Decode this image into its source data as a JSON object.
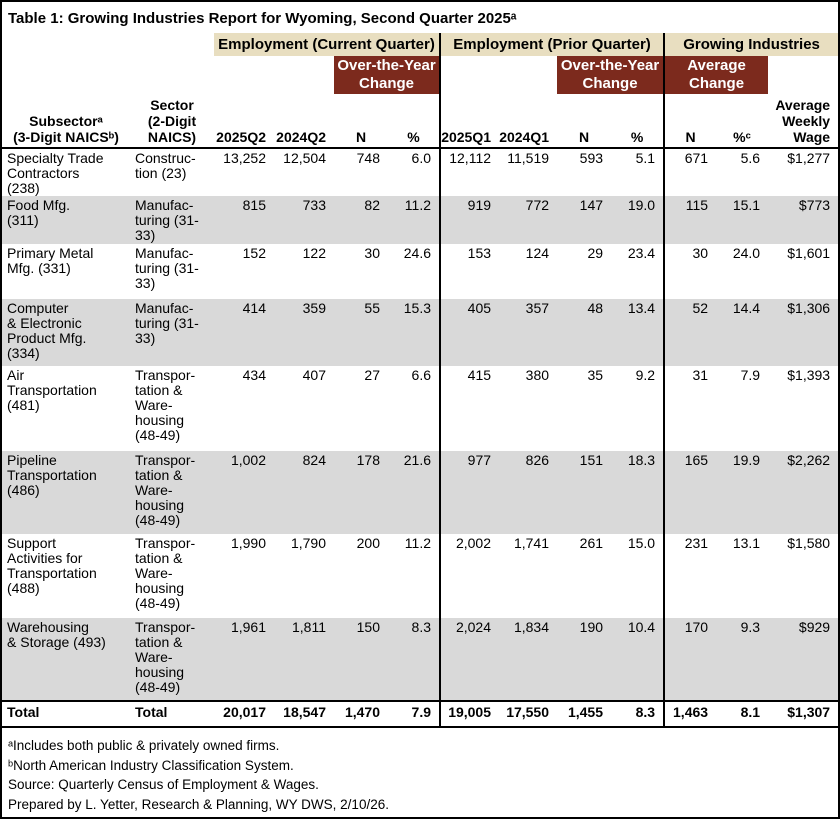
{
  "title": "Table 1: Growing Industries Report for Wyoming, Second Quarter 2025ᵃ",
  "colors": {
    "group_header_bg": "#E8DEC0",
    "change_header_bg": "#7C2A1D",
    "change_header_text": "#FFFFFF",
    "stripe_row_bg": "#D9D9D9",
    "border": "#000000"
  },
  "table": {
    "group_headers": [
      "Employment (Current Quarter)",
      "Employment (Prior Quarter)",
      "Growing Industries"
    ],
    "change_headers": [
      "Over-the-Year\nChange",
      "Over-the-Year\nChange",
      "Average\nChange"
    ],
    "column_headers": [
      "Subsectorᵃ\n(3-Digit NAICSᵇ)",
      "Sector\n(2-Digit\nNAICS)",
      "2025Q2",
      "2024Q2",
      "N",
      "%",
      "2025Q1",
      "2024Q1",
      "N",
      "%",
      "N",
      "%ᶜ",
      "Average\nWeekly\nWage"
    ],
    "rows": [
      [
        "Specialty Trade\nContractors\n(238)",
        "Construc-\ntion (23)",
        "13,252",
        "12,504",
        "748",
        "6.0",
        "12,112",
        "11,519",
        "593",
        "5.1",
        "671",
        "5.6",
        "$1,277"
      ],
      [
        "Food Mfg.\n(311)",
        "Manufac-\nturing (31-\n33)",
        "815",
        "733",
        "82",
        "11.2",
        "919",
        "772",
        "147",
        "19.0",
        "115",
        "15.1",
        "$773"
      ],
      [
        "Primary Metal\nMfg. (331)",
        "Manufac-\nturing (31-\n33)",
        "152",
        "122",
        "30",
        "24.6",
        "153",
        "124",
        "29",
        "23.4",
        "30",
        "24.0",
        "$1,601"
      ],
      [
        "Computer\n& Electronic\nProduct Mfg.\n(334)",
        "Manufac-\nturing (31-\n33)",
        "414",
        "359",
        "55",
        "15.3",
        "405",
        "357",
        "48",
        "13.4",
        "52",
        "14.4",
        "$1,306"
      ],
      [
        "Air\nTransportation\n(481)",
        "Transpor-\ntation &\nWare-\nhousing\n(48-49)",
        "434",
        "407",
        "27",
        "6.6",
        "415",
        "380",
        "35",
        "9.2",
        "31",
        "7.9",
        "$1,393"
      ],
      [
        "Pipeline\nTransportation\n(486)",
        "Transpor-\ntation &\nWare-\nhousing\n(48-49)",
        "1,002",
        "824",
        "178",
        "21.6",
        "977",
        "826",
        "151",
        "18.3",
        "165",
        "19.9",
        "$2,262"
      ],
      [
        "Support\nActivities for\nTransportation\n(488)",
        "Transpor-\ntation &\nWare-\nhousing\n(48-49)",
        "1,990",
        "1,790",
        "200",
        "11.2",
        "2,002",
        "1,741",
        "261",
        "15.0",
        "231",
        "13.1",
        "$1,580"
      ],
      [
        "Warehousing\n& Storage (493)",
        "Transpor-\ntation &\nWare-\nhousing\n(48-49)",
        "1,961",
        "1,811",
        "150",
        "8.3",
        "2,024",
        "1,834",
        "190",
        "10.4",
        "170",
        "9.3",
        "$929"
      ]
    ],
    "total_row": [
      "Total",
      "Total",
      "20,017",
      "18,547",
      "1,470",
      "7.9",
      "19,005",
      "17,550",
      "1,455",
      "8.3",
      "1,463",
      "8.1",
      "$1,307"
    ]
  },
  "footnotes": [
    "ᵃIncludes both public & privately owned firms.",
    "ᵇNorth American Industry Classification System.",
    "Source: Quarterly Census of Employment & Wages.",
    "Prepared by L. Yetter, Research & Planning, WY DWS, 2/10/26."
  ]
}
